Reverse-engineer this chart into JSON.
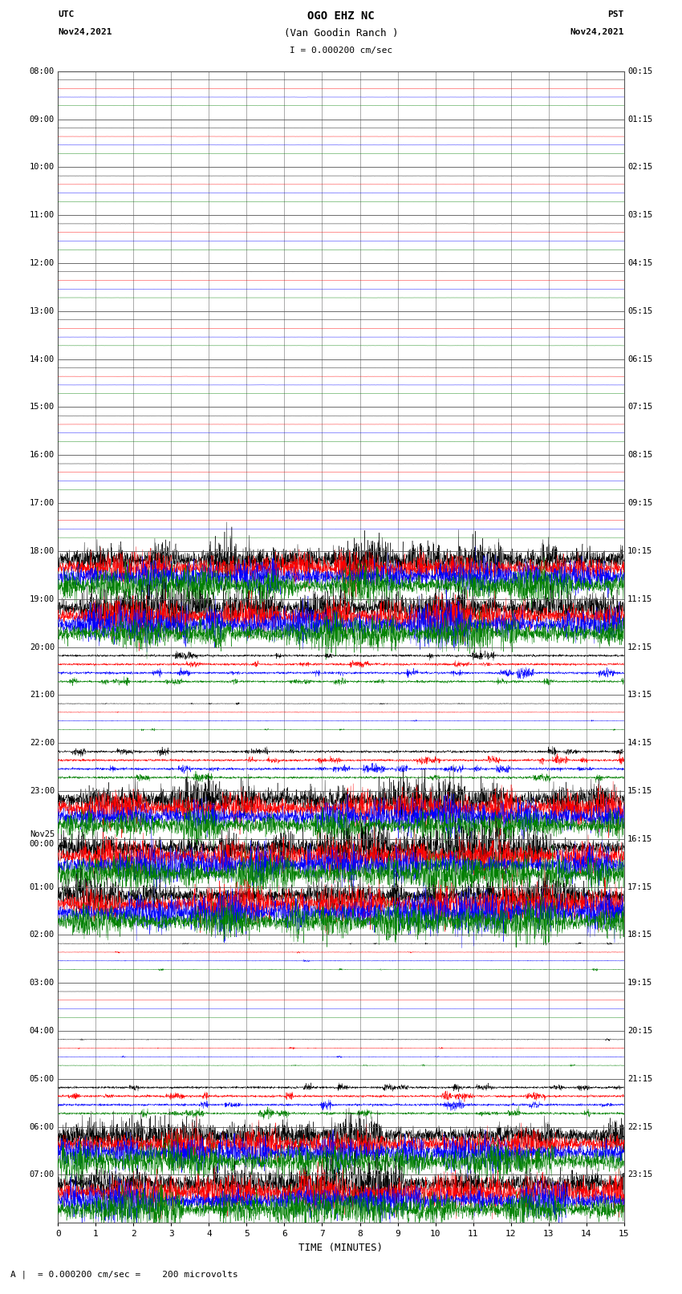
{
  "title_line1": "OGO EHZ NC",
  "title_line2": "(Van Goodin Ranch )",
  "title_line3": "I = 0.000200 cm/sec",
  "left_label_top": "UTC",
  "left_label_date": "Nov24,2021",
  "right_label_top": "PST",
  "right_label_date": "Nov24,2021",
  "xlabel": "TIME (MINUTES)",
  "footer_text": "= 0.000200 cm/sec =    200 microvolts",
  "bg_color": "#ffffff",
  "trace_colors": [
    "black",
    "red",
    "blue",
    "green"
  ],
  "grid_color": "#888888",
  "num_rows": 24,
  "minutes_per_row": 15,
  "hour_labels_utc": [
    "08:00",
    "09:00",
    "10:00",
    "11:00",
    "12:00",
    "13:00",
    "14:00",
    "15:00",
    "16:00",
    "17:00",
    "18:00",
    "19:00",
    "20:00",
    "21:00",
    "22:00",
    "23:00",
    "Nov25\n00:00",
    "01:00",
    "02:00",
    "03:00",
    "04:00",
    "05:00",
    "06:00",
    "07:00"
  ],
  "hour_labels_pst": [
    "00:15",
    "01:15",
    "02:15",
    "03:15",
    "04:15",
    "05:15",
    "06:15",
    "07:15",
    "08:15",
    "09:15",
    "10:15",
    "11:15",
    "12:15",
    "13:15",
    "14:15",
    "15:15",
    "16:15",
    "17:15",
    "18:15",
    "19:15",
    "20:15",
    "21:15",
    "22:15",
    "23:15"
  ],
  "row_activity": [
    0,
    0,
    0,
    0,
    0,
    0,
    0,
    0,
    0,
    0,
    3,
    3,
    2,
    1,
    2,
    3,
    3,
    3,
    1,
    0,
    1,
    2,
    3,
    3
  ],
  "figwidth": 8.5,
  "figheight": 16.13,
  "samples_per_min": 200
}
